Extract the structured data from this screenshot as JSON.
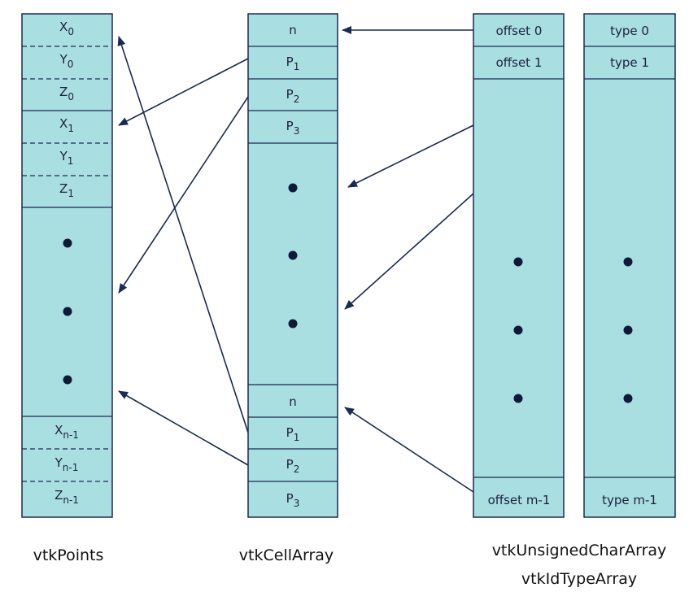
{
  "columns": {
    "points": {
      "label": "vtkPoints",
      "top": [
        {
          "base": "X",
          "sub": "0"
        },
        {
          "base": "Y",
          "sub": "0"
        },
        {
          "base": "Z",
          "sub": "0"
        },
        {
          "base": "X",
          "sub": "1"
        },
        {
          "base": "Y",
          "sub": "1"
        },
        {
          "base": "Z",
          "sub": "1"
        }
      ],
      "bottom": [
        {
          "base": "X",
          "sub": "n-1"
        },
        {
          "base": "Y",
          "sub": "n-1"
        },
        {
          "base": "Z",
          "sub": "n-1"
        }
      ]
    },
    "cells": {
      "label": "vtkCellArray",
      "top": [
        {
          "base": "n",
          "sub": ""
        },
        {
          "base": "P",
          "sub": "1"
        },
        {
          "base": "P",
          "sub": "2"
        },
        {
          "base": "P",
          "sub": "3"
        }
      ],
      "bottom": [
        {
          "base": "n",
          "sub": ""
        },
        {
          "base": "P",
          "sub": "1"
        },
        {
          "base": "P",
          "sub": "2"
        },
        {
          "base": "P",
          "sub": "3"
        }
      ]
    },
    "offsets": {
      "top": [
        "offset 0",
        "offset 1"
      ],
      "bottom": [
        "offset m-1"
      ]
    },
    "types": {
      "top": [
        "type 0",
        "type 1"
      ],
      "bottom": [
        "type m-1"
      ]
    },
    "shared_labels": [
      "vtkUnsignedCharArray",
      "vtkIdTypeArray"
    ]
  },
  "colors": {
    "cell_fill": "#a9dfe0",
    "outline": "#1b2a52",
    "dot": "#0e1b38"
  }
}
